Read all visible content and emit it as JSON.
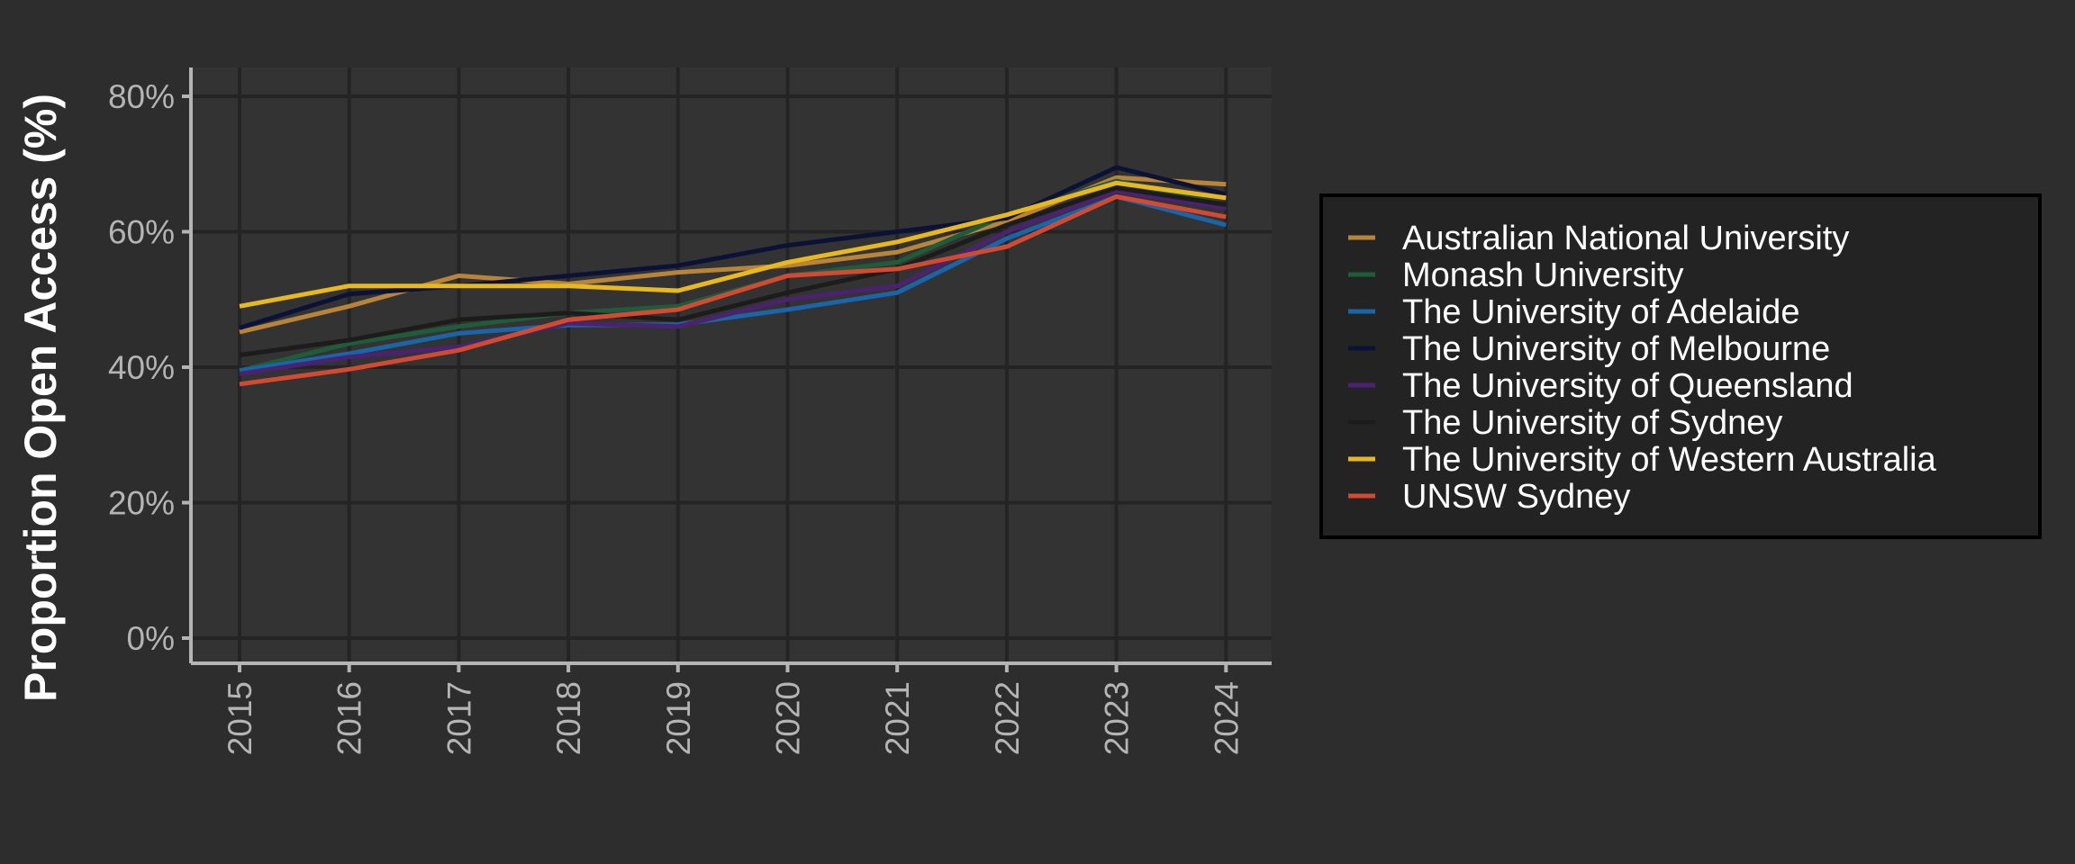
{
  "chart_data": {
    "type": "line",
    "title": "",
    "xlabel": "",
    "ylabel": "Proportion Open Access (%)",
    "x": [
      "2015",
      "2016",
      "2017",
      "2018",
      "2019",
      "2020",
      "2021",
      "2022",
      "2023",
      "2024"
    ],
    "ylim": [
      0,
      0.84
    ],
    "y_ticks": [
      0,
      0.2,
      0.4,
      0.6,
      0.8
    ],
    "y_tick_labels": [
      "0%",
      "20%",
      "40%",
      "60%",
      "80%"
    ],
    "grid": true,
    "legend_position": "right",
    "background": "#2d2d2d",
    "panel_background": "#333333",
    "grid_color": "#242424",
    "series": [
      {
        "name": "Australian National University",
        "color": "#b8843a",
        "values": [
          0.452,
          0.49,
          0.535,
          0.523,
          0.54,
          0.55,
          0.57,
          0.615,
          0.68,
          0.67
        ]
      },
      {
        "name": "Monash University",
        "color": "#1f5c3a",
        "values": [
          0.395,
          0.435,
          0.46,
          0.48,
          0.49,
          0.535,
          0.555,
          0.625,
          0.675,
          0.64
        ]
      },
      {
        "name": "The University of Adelaide",
        "color": "#1a64a8",
        "values": [
          0.395,
          0.42,
          0.45,
          0.462,
          0.463,
          0.485,
          0.51,
          0.59,
          0.652,
          0.61
        ]
      },
      {
        "name": "The University of Melbourne",
        "color": "#0c1236",
        "values": [
          0.458,
          0.508,
          0.52,
          0.535,
          0.55,
          0.58,
          0.6,
          0.62,
          0.695,
          0.655
        ]
      },
      {
        "name": "The University of Queensland",
        "color": "#4a2270",
        "values": [
          0.39,
          0.415,
          0.43,
          0.465,
          0.46,
          0.5,
          0.52,
          0.6,
          0.66,
          0.635
        ]
      },
      {
        "name": "The University of Sydney",
        "color": "#1c1c1c",
        "values": [
          0.418,
          0.44,
          0.47,
          0.48,
          0.47,
          0.51,
          0.545,
          0.61,
          0.665,
          0.64
        ]
      },
      {
        "name": "The University of Western Australia",
        "color": "#e8b820",
        "values": [
          0.49,
          0.52,
          0.52,
          0.52,
          0.513,
          0.555,
          0.585,
          0.625,
          0.672,
          0.65
        ]
      },
      {
        "name": "UNSW Sydney",
        "color": "#d34a32",
        "values": [
          0.375,
          0.397,
          0.425,
          0.47,
          0.485,
          0.535,
          0.545,
          0.578,
          0.652,
          0.622
        ]
      }
    ]
  }
}
